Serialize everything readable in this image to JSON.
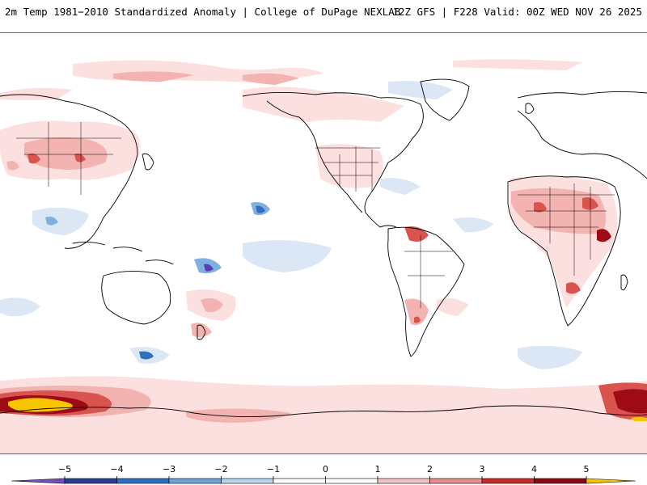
{
  "header": {
    "title": "2m Temp 1981−2010 Standardized Anomaly | College of DuPage NEXLAB",
    "run_info": "12Z GFS | F228 Valid: 00Z WED NOV 26 2025"
  },
  "legend": {
    "ticks": [
      "−5",
      "−4",
      "−3",
      "−2",
      "−1",
      "0",
      "1",
      "2",
      "3",
      "4",
      "5"
    ],
    "bins": [
      {
        "color": "#7a4ec2"
      },
      {
        "color": "#2b3d8f"
      },
      {
        "color": "#2f6fbd"
      },
      {
        "color": "#6ea3d8"
      },
      {
        "color": "#b9d3ec"
      },
      {
        "color": "#ffffff"
      },
      {
        "color": "#ffffff"
      },
      {
        "color": "#f3c2c2"
      },
      {
        "color": "#e58f8f"
      },
      {
        "color": "#c92a2a"
      },
      {
        "color": "#8b0a12"
      },
      {
        "color": "#f5c400"
      }
    ]
  },
  "colors": {
    "map_background": "#ffffff",
    "coastline": "#000000",
    "warm_light": "#fbe0df",
    "warm_mid": "#f2b3b1",
    "warm_strong": "#d9534f",
    "warm_extreme": "#9e0b14",
    "warm_max": "#f7c600",
    "cold_light": "#dbe7f4",
    "cold_mid": "#7fb0e0",
    "cold_strong": "#2f6fbd",
    "cold_extreme": "#5a3fb0"
  }
}
